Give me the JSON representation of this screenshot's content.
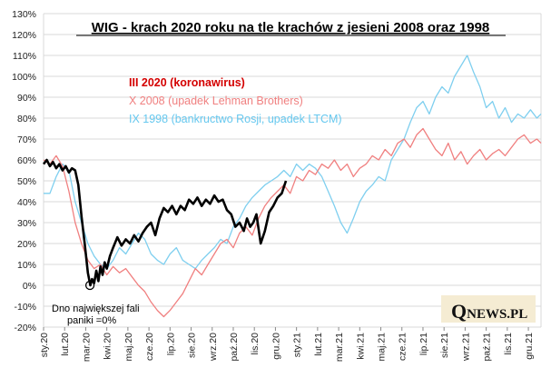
{
  "chart_data": {
    "type": "line",
    "title": "WIG - krach 2020 roku na tle krachów z jesieni 2008 oraz 1998",
    "xlabel": "",
    "ylabel": "",
    "ylim": [
      -20,
      130
    ],
    "y_ticks": [
      "130%",
      "120%",
      "110%",
      "100%",
      "90%",
      "80%",
      "70%",
      "60%",
      "50%",
      "40%",
      "30%",
      "20%",
      "10%",
      "0%",
      "-10%",
      "-20%"
    ],
    "y_tick_values": [
      130,
      120,
      110,
      100,
      90,
      80,
      70,
      60,
      50,
      40,
      30,
      20,
      10,
      0,
      -10,
      -20
    ],
    "x_ticks": [
      "sty.20",
      "lut.20",
      "mar.20",
      "kwi.20",
      "maj.20",
      "cze.20",
      "lip.20",
      "sie.20",
      "wrz.20",
      "paź.20",
      "lis.20",
      "gru.20",
      "sty.21",
      "lut.21",
      "mar.21",
      "kwi.21",
      "maj.21",
      "cze.21",
      "lip.21",
      "sie.21",
      "wrz.21",
      "paź.21",
      "lis.21",
      "gru.21"
    ],
    "x_range_months": [
      0,
      23.6
    ],
    "annotation": {
      "text_line1": "Dno największej fali",
      "text_line2": "paniki =0%",
      "x": 2.2,
      "y": 0
    },
    "logo": {
      "q": "Q",
      "rest": "NEWS.PL"
    },
    "series": [
      {
        "name": "III 2020  (koronawirus)",
        "color": "#000000",
        "legend_color": "#d40000",
        "bold": true,
        "x": [
          0,
          0.15,
          0.3,
          0.45,
          0.6,
          0.75,
          0.9,
          1.05,
          1.2,
          1.35,
          1.5,
          1.65,
          1.8,
          1.95,
          2.1,
          2.22,
          2.3,
          2.4,
          2.5,
          2.6,
          2.7,
          2.8,
          2.9,
          3.0,
          3.15,
          3.3,
          3.5,
          3.7,
          3.9,
          4.1,
          4.3,
          4.5,
          4.7,
          4.9,
          5.1,
          5.3,
          5.5,
          5.7,
          5.9,
          6.1,
          6.3,
          6.5,
          6.7,
          6.9,
          7.1,
          7.3,
          7.5,
          7.7,
          7.9,
          8.1,
          8.3,
          8.5,
          8.7,
          8.9,
          9.1,
          9.3,
          9.5,
          9.65,
          9.8,
          9.95,
          10.1,
          10.3,
          10.5,
          10.7,
          10.9,
          11.1,
          11.3,
          11.5
        ],
        "y": [
          58,
          60,
          57,
          59,
          56,
          58,
          55,
          57,
          54,
          56,
          55,
          48,
          33,
          20,
          6,
          0,
          3,
          1,
          7,
          2,
          9,
          5,
          11,
          8,
          14,
          18,
          23,
          19,
          22,
          20,
          24,
          21,
          25,
          28,
          30,
          24,
          32,
          37,
          35,
          38,
          34,
          38,
          36,
          41,
          39,
          42,
          38,
          41,
          39,
          43,
          40,
          41,
          36,
          34,
          28,
          30,
          26,
          32,
          28,
          30,
          34,
          20,
          26,
          35,
          38,
          42,
          44,
          50
        ]
      },
      {
        "name": "X 2008  (upadek Lehman Brothers)",
        "color": "#f08080",
        "legend_color": "#f08080",
        "bold": false,
        "x": [
          0,
          0.3,
          0.6,
          0.9,
          1.2,
          1.5,
          1.8,
          2.1,
          2.4,
          2.7,
          3.0,
          3.3,
          3.6,
          3.9,
          4.2,
          4.5,
          4.8,
          5.1,
          5.4,
          5.7,
          6.0,
          6.3,
          6.6,
          6.9,
          7.2,
          7.5,
          7.8,
          8.1,
          8.4,
          8.7,
          9.0,
          9.3,
          9.6,
          9.9,
          10.2,
          10.5,
          10.8,
          11.1,
          11.4,
          11.7,
          12.0,
          12.3,
          12.6,
          12.9,
          13.2,
          13.5,
          13.8,
          14.1,
          14.4,
          14.7,
          15.0,
          15.3,
          15.6,
          15.9,
          16.2,
          16.5,
          16.8,
          17.1,
          17.4,
          17.7,
          18.0,
          18.3,
          18.6,
          18.9,
          19.2,
          19.5,
          19.8,
          20.1,
          20.4,
          20.7,
          21.0,
          21.3,
          21.6,
          21.9,
          22.2,
          22.5,
          22.8,
          23.1,
          23.4,
          23.6
        ],
        "y": [
          60,
          58,
          62,
          57,
          45,
          30,
          20,
          12,
          8,
          10,
          5,
          9,
          6,
          8,
          4,
          0,
          -3,
          -8,
          -12,
          -15,
          -12,
          -8,
          -4,
          2,
          8,
          5,
          10,
          15,
          20,
          22,
          18,
          25,
          28,
          24,
          32,
          38,
          42,
          45,
          48,
          44,
          52,
          50,
          55,
          53,
          58,
          56,
          60,
          55,
          58,
          52,
          56,
          58,
          62,
          60,
          65,
          62,
          68,
          70,
          66,
          72,
          75,
          70,
          65,
          62,
          68,
          60,
          64,
          58,
          62,
          65,
          60,
          63,
          65,
          62,
          66,
          70,
          72,
          68,
          70,
          68
        ]
      },
      {
        "name": "IX 1998  (bankructwo Rosji, upadek LTCM)",
        "color": "#7fcfef",
        "legend_color": "#66c8ef",
        "bold": false,
        "x": [
          0,
          0.3,
          0.6,
          0.9,
          1.2,
          1.5,
          1.8,
          2.1,
          2.4,
          2.7,
          3.0,
          3.3,
          3.6,
          3.9,
          4.2,
          4.5,
          4.8,
          5.1,
          5.4,
          5.7,
          6.0,
          6.3,
          6.6,
          6.9,
          7.2,
          7.5,
          7.8,
          8.1,
          8.4,
          8.7,
          9.0,
          9.3,
          9.6,
          9.9,
          10.2,
          10.5,
          10.8,
          11.1,
          11.4,
          11.7,
          12.0,
          12.3,
          12.6,
          12.9,
          13.2,
          13.5,
          13.8,
          14.1,
          14.4,
          14.7,
          15.0,
          15.3,
          15.6,
          15.9,
          16.2,
          16.5,
          16.8,
          17.1,
          17.4,
          17.7,
          18.0,
          18.3,
          18.6,
          18.9,
          19.2,
          19.5,
          19.8,
          20.1,
          20.4,
          20.7,
          21.0,
          21.3,
          21.6,
          21.9,
          22.2,
          22.5,
          22.8,
          23.1,
          23.4,
          23.6
        ],
        "y": [
          44,
          44,
          52,
          58,
          55,
          40,
          30,
          20,
          14,
          10,
          8,
          12,
          18,
          15,
          20,
          25,
          22,
          15,
          12,
          10,
          15,
          18,
          12,
          10,
          8,
          12,
          15,
          18,
          22,
          20,
          28,
          32,
          38,
          42,
          45,
          48,
          50,
          52,
          55,
          52,
          58,
          55,
          58,
          56,
          52,
          45,
          38,
          30,
          25,
          32,
          40,
          45,
          48,
          52,
          50,
          60,
          65,
          70,
          78,
          85,
          88,
          82,
          90,
          95,
          92,
          100,
          105,
          110,
          102,
          95,
          85,
          88,
          80,
          85,
          78,
          82,
          80,
          84,
          80,
          82
        ]
      }
    ]
  }
}
